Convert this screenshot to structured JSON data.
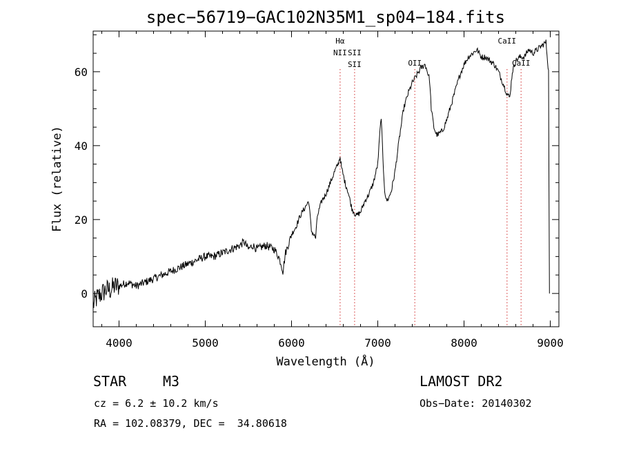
{
  "chart_data": {
    "type": "line",
    "title": "spec−56719−GAC102N35M1_sp04−184.fits",
    "xlabel": "Wavelength (Å)",
    "ylabel": "Flux (relative)",
    "xlim": [
      3700,
      9100
    ],
    "ylim": [
      -9,
      71
    ],
    "xticks": [
      4000,
      5000,
      6000,
      7000,
      8000,
      9000
    ],
    "yticks": [
      0,
      20,
      40,
      60
    ],
    "grid": false,
    "series": [
      {
        "name": "flux",
        "x": [
          3700,
          3750,
          3800,
          3850,
          3900,
          3950,
          4000,
          4100,
          4200,
          4300,
          4400,
          4500,
          4600,
          4700,
          4800,
          4900,
          5000,
          5100,
          5200,
          5300,
          5400,
          5450,
          5500,
          5550,
          5600,
          5700,
          5800,
          5850,
          5880,
          5900,
          5930,
          5960,
          6000,
          6050,
          6100,
          6150,
          6200,
          6230,
          6280,
          6300,
          6350,
          6400,
          6450,
          6500,
          6540,
          6563,
          6580,
          6620,
          6650,
          6700,
          6750,
          6800,
          6850,
          6900,
          6950,
          7000,
          7020,
          7040,
          7060,
          7080,
          7100,
          7130,
          7160,
          7200,
          7250,
          7300,
          7350,
          7400,
          7450,
          7500,
          7550,
          7600,
          7620,
          7650,
          7680,
          7700,
          7750,
          7800,
          7850,
          7900,
          7950,
          8000,
          8050,
          8100,
          8150,
          8200,
          8250,
          8300,
          8350,
          8400,
          8450,
          8500,
          8530,
          8560,
          8600,
          8650,
          8700,
          8750,
          8800,
          8850,
          8900,
          8950,
          8980,
          8990
        ],
        "y": [
          -3,
          -1,
          0,
          1,
          1,
          2,
          2,
          3,
          2,
          3,
          4,
          5,
          6,
          7,
          8,
          9,
          10,
          10,
          11,
          12,
          13,
          14,
          12,
          13,
          12,
          13,
          12,
          10,
          8,
          6,
          11,
          13,
          16,
          18,
          21,
          23,
          25,
          17,
          15,
          21,
          25,
          27,
          30,
          33,
          35,
          37,
          34,
          30,
          28,
          23,
          21,
          22,
          25,
          27,
          30,
          35,
          42,
          48,
          36,
          28,
          25,
          26,
          28,
          33,
          42,
          50,
          54,
          57,
          59,
          61,
          62,
          58,
          50,
          45,
          43,
          43,
          44,
          47,
          51,
          55,
          59,
          62,
          64,
          65,
          66,
          64,
          64,
          63,
          62,
          60,
          57,
          54,
          53,
          60,
          63,
          64,
          64,
          66,
          65,
          66,
          67,
          68,
          60,
          0
        ]
      }
    ],
    "lines": [
      {
        "name": "Hα",
        "x": 6563,
        "labels": [
          "Hα",
          "NII"
        ]
      },
      {
        "name": "SII",
        "x": 6731,
        "labels": [
          "SII",
          "SII"
        ]
      },
      {
        "name": "OII",
        "x": 7430,
        "labels": [
          "OII"
        ]
      },
      {
        "name": "CaII",
        "x": 8498,
        "labels": [
          "CaII"
        ]
      },
      {
        "name": "CaII",
        "x": 8662,
        "labels": [
          "CaII"
        ]
      }
    ],
    "colors": {
      "line": "#000000",
      "marker": "#e07070"
    }
  },
  "info": {
    "obj_type": "STAR",
    "obj_class": "M3",
    "survey": "LAMOST DR2",
    "cz": "cz = 6.2 ± 10.2 km/s",
    "obs_date": "Obs−Date: 20140302",
    "radec": "RA = 102.08379, DEC =  34.80618"
  }
}
